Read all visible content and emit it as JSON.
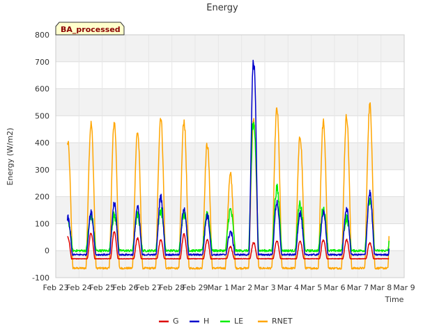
{
  "chart_data": {
    "type": "line",
    "title": "Energy",
    "xlabel": "Time",
    "ylabel": "Energy (W/m2)",
    "badge": "BA_processed",
    "ylim": [
      -100,
      800
    ],
    "yticks": [
      -100,
      0,
      100,
      200,
      300,
      400,
      500,
      600,
      700,
      800
    ],
    "xlim": [
      0,
      15
    ],
    "xticks": [
      {
        "x": 0,
        "label": "Feb 23"
      },
      {
        "x": 1,
        "label": "Feb 24"
      },
      {
        "x": 2,
        "label": "Feb 25"
      },
      {
        "x": 3,
        "label": "Feb 26"
      },
      {
        "x": 4,
        "label": "Feb 27"
      },
      {
        "x": 5,
        "label": "Feb 28"
      },
      {
        "x": 6,
        "label": "Feb 29"
      },
      {
        "x": 7,
        "label": "Mar 1"
      },
      {
        "x": 8,
        "label": "Mar 2"
      },
      {
        "x": 9,
        "label": "Mar 3"
      },
      {
        "x": 10,
        "label": "Mar 4"
      },
      {
        "x": 11,
        "label": "Mar 5"
      },
      {
        "x": 12,
        "label": "Mar 6"
      },
      {
        "x": 13,
        "label": "Mar 7"
      },
      {
        "x": 14,
        "label": "Mar 8"
      },
      {
        "x": 15,
        "label": "Mar 9"
      }
    ],
    "x_units": "days since Feb 23",
    "daily_peaks": [
      {
        "day": "Feb 23",
        "G": 50,
        "H": 120,
        "LE": 110,
        "RNET": 400
      },
      {
        "day": "Feb 24",
        "G": 65,
        "H": 140,
        "LE": 130,
        "RNET": 470
      },
      {
        "day": "Feb 25",
        "G": 70,
        "H": 175,
        "LE": 130,
        "RNET": 475
      },
      {
        "day": "Feb 26",
        "G": 45,
        "H": 160,
        "LE": 130,
        "RNET": 440
      },
      {
        "day": "Feb 27",
        "G": 40,
        "H": 200,
        "LE": 150,
        "RNET": 495
      },
      {
        "day": "Feb 28",
        "G": 60,
        "H": 160,
        "LE": 140,
        "RNET": 480
      },
      {
        "day": "Feb 29",
        "G": 40,
        "H": 130,
        "LE": 140,
        "RNET": 395
      },
      {
        "day": "Mar 1",
        "G": 15,
        "H": 70,
        "LE": 150,
        "RNET": 280
      },
      {
        "day": "Mar 2",
        "G": 30,
        "H": 730,
        "LE": 470,
        "RNET": 480
      },
      {
        "day": "Mar 3",
        "G": 35,
        "H": 180,
        "LE": 230,
        "RNET": 525
      },
      {
        "day": "Mar 4",
        "G": 35,
        "H": 140,
        "LE": 170,
        "RNET": 425
      },
      {
        "day": "Mar 5",
        "G": 40,
        "H": 140,
        "LE": 155,
        "RNET": 475
      },
      {
        "day": "Mar 6",
        "G": 40,
        "H": 155,
        "LE": 120,
        "RNET": 500
      },
      {
        "day": "Mar 7",
        "G": 30,
        "H": 215,
        "LE": 185,
        "RNET": 540
      }
    ],
    "series": [
      {
        "name": "G",
        "color": "#dd0000"
      },
      {
        "name": "H",
        "color": "#0000cc"
      },
      {
        "name": "LE",
        "color": "#00ee00"
      },
      {
        "name": "RNET",
        "color": "#ffa500"
      }
    ],
    "night_values": {
      "G": -30,
      "H": -15,
      "LE": 0,
      "RNET": -65
    },
    "series_end_x": 14.35,
    "legend_position": "bottom-center",
    "grid": true
  }
}
